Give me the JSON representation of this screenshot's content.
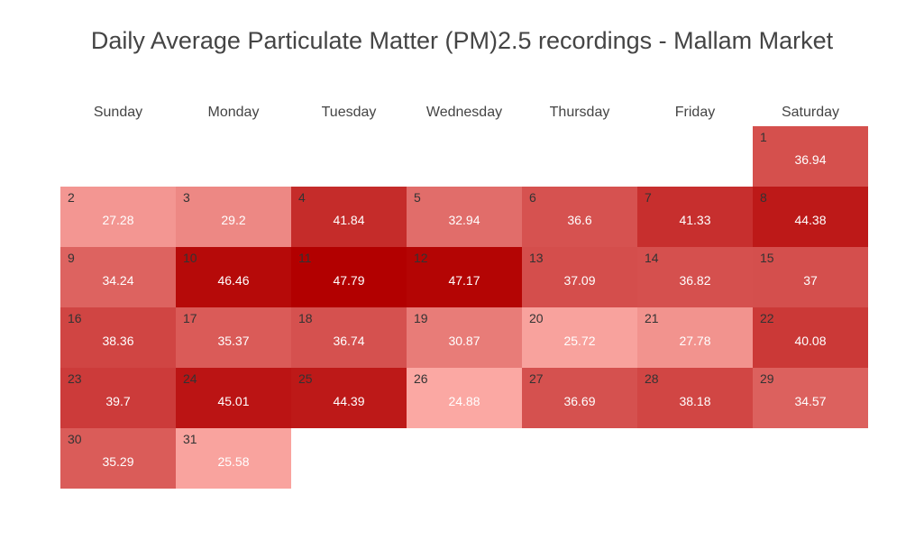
{
  "chart_data": {
    "type": "heatmap",
    "title": "Daily Average Particulate Matter (PM)2.5 recordings - Mallam Market",
    "weekdays": [
      "Sunday",
      "Monday",
      "Tuesday",
      "Wednesday",
      "Thursday",
      "Friday",
      "Saturday"
    ],
    "days": [
      {
        "day": 1,
        "weekday": "Saturday",
        "value": 36.94
      },
      {
        "day": 2,
        "weekday": "Sunday",
        "value": 27.28
      },
      {
        "day": 3,
        "weekday": "Monday",
        "value": 29.2
      },
      {
        "day": 4,
        "weekday": "Tuesday",
        "value": 41.84
      },
      {
        "day": 5,
        "weekday": "Wednesday",
        "value": 32.94
      },
      {
        "day": 6,
        "weekday": "Thursday",
        "value": 36.6
      },
      {
        "day": 7,
        "weekday": "Friday",
        "value": 41.33
      },
      {
        "day": 8,
        "weekday": "Saturday",
        "value": 44.38
      },
      {
        "day": 9,
        "weekday": "Sunday",
        "value": 34.24
      },
      {
        "day": 10,
        "weekday": "Monday",
        "value": 46.46
      },
      {
        "day": 11,
        "weekday": "Tuesday",
        "value": 47.79
      },
      {
        "day": 12,
        "weekday": "Wednesday",
        "value": 47.17
      },
      {
        "day": 13,
        "weekday": "Thursday",
        "value": 37.09
      },
      {
        "day": 14,
        "weekday": "Friday",
        "value": 36.82
      },
      {
        "day": 15,
        "weekday": "Saturday",
        "value": 37
      },
      {
        "day": 16,
        "weekday": "Sunday",
        "value": 38.36
      },
      {
        "day": 17,
        "weekday": "Monday",
        "value": 35.37
      },
      {
        "day": 18,
        "weekday": "Tuesday",
        "value": 36.74
      },
      {
        "day": 19,
        "weekday": "Wednesday",
        "value": 30.87
      },
      {
        "day": 20,
        "weekday": "Thursday",
        "value": 25.72
      },
      {
        "day": 21,
        "weekday": "Friday",
        "value": 27.78
      },
      {
        "day": 22,
        "weekday": "Saturday",
        "value": 40.08
      },
      {
        "day": 23,
        "weekday": "Sunday",
        "value": 39.7
      },
      {
        "day": 24,
        "weekday": "Monday",
        "value": 45.01
      },
      {
        "day": 25,
        "weekday": "Tuesday",
        "value": 44.39
      },
      {
        "day": 26,
        "weekday": "Wednesday",
        "value": 24.88
      },
      {
        "day": 27,
        "weekday": "Thursday",
        "value": 36.69
      },
      {
        "day": 28,
        "weekday": "Friday",
        "value": 38.18
      },
      {
        "day": 29,
        "weekday": "Saturday",
        "value": 34.57
      },
      {
        "day": 30,
        "weekday": "Sunday",
        "value": 35.29
      },
      {
        "day": 31,
        "weekday": "Monday",
        "value": 25.58
      }
    ],
    "color_scale": {
      "low": "#fba8a3",
      "high": "#b20000"
    }
  }
}
